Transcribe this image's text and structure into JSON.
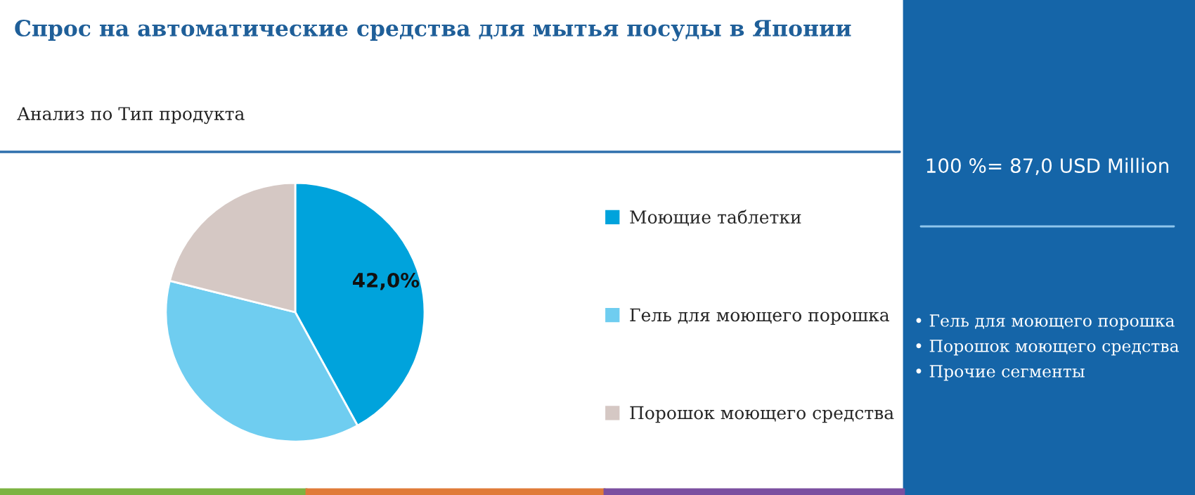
{
  "chart_data": {
    "type": "pie",
    "title": "Спрос на автоматические средства для мытья посуды в Японии",
    "subtitle": "Анализ по Тип продукта",
    "categories": [
      "Моющие таблетки",
      "Гель для моющего порошка",
      "Порошок моющего средства"
    ],
    "values": [
      42.0,
      36.9,
      21.1
    ],
    "colors": [
      "#00a3dc",
      "#6fcdf0",
      "#d5c8c4"
    ],
    "value_labels": [
      "42,0%",
      null,
      null
    ],
    "legend": "right",
    "annotations": [
      "100 %= 87,0 USD Million",
      "• Гель для моющего порошка",
      "• Порошок моющего средства",
      "• Прочие сегменты"
    ]
  }
}
